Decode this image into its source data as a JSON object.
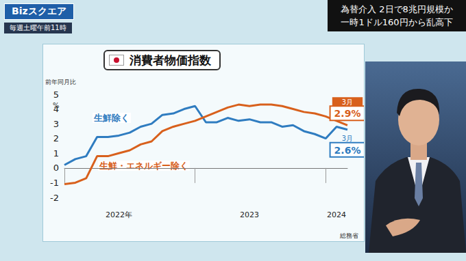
{
  "broadcast": {
    "logo": "Bizスクエア",
    "schedule": "毎週土曜午前11時",
    "headline": [
      "為替介入 2日で8兆円規模か",
      "一時1ドル160円から乱高下"
    ]
  },
  "chart_data": {
    "type": "line",
    "title": "消費者物価指数",
    "y_label": "前年同月比",
    "y_unit": "%",
    "source": "総務省",
    "categories": [
      null,
      null,
      null,
      null,
      null,
      "2022年",
      null,
      null,
      null,
      null,
      null,
      null,
      null,
      null,
      null,
      null,
      null,
      "2023",
      null,
      null,
      null,
      null,
      null,
      null,
      null,
      "2024",
      null
    ],
    "series": [
      {
        "name": "生鮮除く",
        "color": "#2f7cc0",
        "values": [
          0.2,
          0.6,
          0.8,
          2.1,
          2.1,
          2.2,
          2.4,
          2.8,
          3.0,
          3.6,
          3.7,
          4.0,
          4.2,
          3.1,
          3.1,
          3.4,
          3.2,
          3.3,
          3.1,
          3.1,
          2.8,
          2.9,
          2.5,
          2.3,
          2.0,
          2.8,
          2.6
        ],
        "value_labels": [
          null,
          null,
          null,
          null,
          null,
          null,
          null,
          null,
          null,
          null,
          null,
          null,
          null,
          null,
          null,
          null,
          null,
          null,
          null,
          null,
          null,
          null,
          null,
          null,
          null,
          null,
          "2.6%"
        ],
        "annotation": "3月"
      },
      {
        "name": "生鮮・エネルギー除く",
        "color": "#d8601c",
        "values": [
          -1.1,
          -1.0,
          -0.7,
          0.8,
          0.8,
          1.0,
          1.2,
          1.6,
          1.8,
          2.5,
          2.8,
          3.0,
          3.2,
          3.5,
          3.8,
          4.1,
          4.3,
          4.2,
          4.3,
          4.3,
          4.2,
          4.0,
          3.8,
          3.7,
          3.5,
          3.2,
          2.9
        ],
        "value_labels": [
          null,
          null,
          null,
          null,
          null,
          null,
          null,
          null,
          null,
          null,
          null,
          null,
          null,
          null,
          null,
          null,
          null,
          null,
          null,
          null,
          null,
          null,
          null,
          null,
          null,
          null,
          "2.9%"
        ],
        "annotation": "3月"
      }
    ],
    "ylim": [
      -2,
      5
    ],
    "yticks": [
      -2,
      -1,
      0,
      1,
      2,
      3,
      4,
      5
    ],
    "grid": false
  }
}
